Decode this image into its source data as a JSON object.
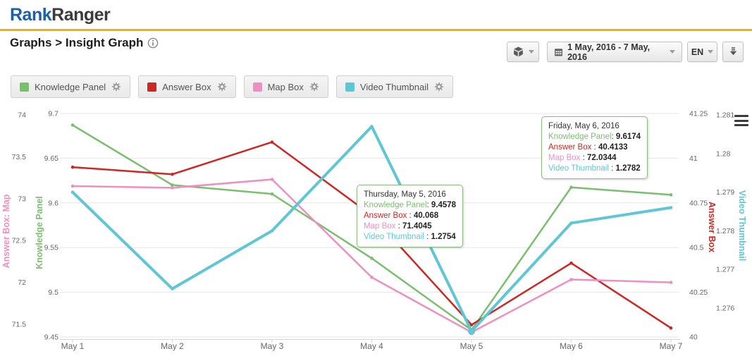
{
  "header": {
    "logo_primary": "Rank",
    "logo_secondary": "Ranger"
  },
  "breadcrumb": {
    "text": "Graphs > Insight Graph",
    "info_icon": "info-icon"
  },
  "toolbar": {
    "package_button": {
      "icon": "package-icon"
    },
    "date_range_button": {
      "icon": "calendar-icon",
      "label": "1 May, 2016 - 7 May, 2016"
    },
    "language_button": {
      "label": "EN"
    },
    "download_button": {
      "icon": "download-icon"
    },
    "chart_menu_button": {
      "icon": "hamburger-icon"
    }
  },
  "legend": [
    {
      "label": "Knowledge Panel",
      "color": "#7abf6e",
      "gear_icon": "gear-icon"
    },
    {
      "label": "Answer Box",
      "color": "#ce2723",
      "gear_icon": "gear-icon"
    },
    {
      "label": "Map Box",
      "color": "#ef8fc1",
      "gear_icon": "gear-icon"
    },
    {
      "label": "Video Thumbnail",
      "color": "#5fc6d6",
      "gear_icon": "gear-icon"
    }
  ],
  "chart_data": {
    "type": "line",
    "grid": true,
    "categories": [
      "May 1",
      "May 2",
      "May 3",
      "May 4",
      "May 5",
      "May 6",
      "May 7"
    ],
    "series": [
      {
        "name": "Knowledge Panel",
        "color": "#7abf6e",
        "axis": "knowledge_panel",
        "line_width": 2.5,
        "values": [
          9.687,
          9.62,
          9.61,
          9.538,
          9.4578,
          9.6174,
          9.609
        ]
      },
      {
        "name": "Answer Box",
        "color": "#ce2723",
        "axis": "answer_box",
        "line_width": 2.5,
        "values": [
          40.95,
          40.91,
          41.09,
          40.68,
          40.068,
          40.4133,
          40.05
        ]
      },
      {
        "name": "Map Box",
        "color": "#ef8fc1",
        "axis": "map_box",
        "line_width": 2.5,
        "values": [
          73.15,
          73.13,
          73.23,
          72.06,
          71.4045,
          72.0344,
          72.0
        ],
        "highlight_index": 4,
        "highlight_radius": 4
      },
      {
        "name": "Video Thumbnail",
        "color": "#5fc6d6",
        "axis": "video_thumbnail",
        "line_width": 4,
        "values": [
          1.279,
          1.2765,
          1.278,
          1.2807,
          1.2754,
          1.2782,
          1.2786
        ],
        "highlight_index": 4,
        "highlight_radius": 5
      }
    ],
    "axes": [
      {
        "id": "map_box",
        "title": "Answer Box: Map",
        "side": "left-outer",
        "color": "#ef8fc1",
        "range": [
          71.5,
          74
        ],
        "ticks": [
          "74",
          "73.5",
          "73",
          "72.5",
          "72",
          "71.5"
        ]
      },
      {
        "id": "knowledge_panel",
        "title": "Knowledge Panel",
        "side": "left-inner",
        "color": "#7abf6e",
        "range": [
          9.45,
          9.7
        ],
        "ticks": [
          "9.7",
          "9.65",
          "9.6",
          "9.55",
          "9.5",
          "9.45"
        ]
      },
      {
        "id": "answer_box",
        "title": "Answer Box",
        "side": "right-inner",
        "color": "#ce2723",
        "range": [
          40,
          41.25
        ],
        "ticks": [
          "41.25",
          "41",
          "40.75",
          "40.5",
          "40.25",
          "40"
        ]
      },
      {
        "id": "video_thumbnail",
        "title": "Video Thumbnail",
        "side": "right-outer",
        "color": "#5fc6d6",
        "range": [
          1.276,
          1.281
        ],
        "ticks": [
          "1.281",
          "1.28",
          "1.279",
          "1.278",
          "1.277",
          "1.276"
        ]
      }
    ],
    "tooltips": [
      {
        "title": "Thursday, May 5, 2016",
        "rows": [
          {
            "label": "Knowledge Panel",
            "sep": ":",
            "value": "9.4578",
            "color": "#7abf6e"
          },
          {
            "label": "Answer Box",
            "sep": " :",
            "value": "40.068",
            "color": "#ce2723"
          },
          {
            "label": "Map Box",
            "sep": " :",
            "value": "71.4045",
            "color": "#ef8fc1"
          },
          {
            "label": "Video Thumbnail",
            "sep": " :",
            "value": "1.2754",
            "color": "#5fc6d6"
          }
        ]
      },
      {
        "title": "Friday, May 6, 2016",
        "rows": [
          {
            "label": "Knowledge Panel",
            "sep": ":",
            "value": "9.6174",
            "color": "#7abf6e"
          },
          {
            "label": "Answer Box",
            "sep": " :",
            "value": "40.4133",
            "color": "#ce2723"
          },
          {
            "label": "Map Box",
            "sep": " :",
            "value": "72.0344",
            "color": "#ef8fc1"
          },
          {
            "label": "Video Thumbnail",
            "sep": " :",
            "value": "1.2782",
            "color": "#5fc6d6"
          }
        ]
      }
    ]
  }
}
